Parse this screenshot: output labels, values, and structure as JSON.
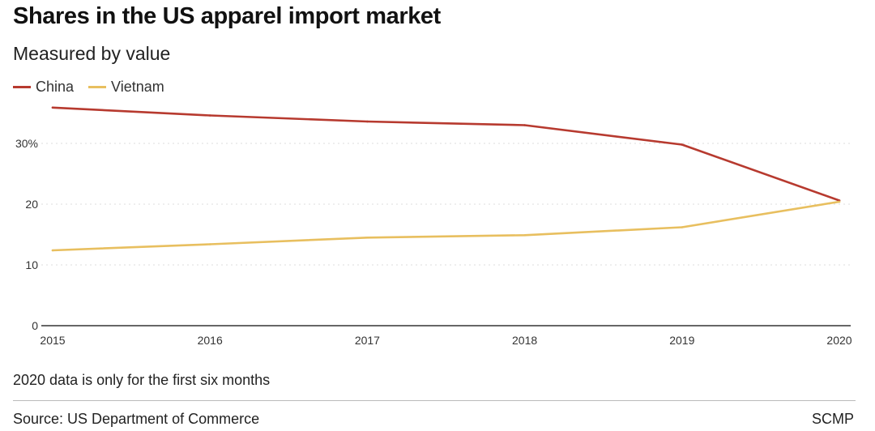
{
  "header": {
    "title": "Shares in the US apparel import market",
    "subtitle": "Measured by value"
  },
  "footer": {
    "note": "2020 data is only for the first six months",
    "source": "Source: US Department of Commerce",
    "brand": "SCMP"
  },
  "colors": {
    "china": "#b73a2f",
    "vietnam": "#e8bf5f",
    "grid": "#dddddd",
    "axis": "#333333"
  },
  "chart_data": {
    "type": "line",
    "title": "Shares in the US apparel import market",
    "subtitle": "Measured by value",
    "x": [
      2015,
      2016,
      2017,
      2018,
      2019,
      2020
    ],
    "x_tick_labels": [
      "2015",
      "2016",
      "2017",
      "2018",
      "2019",
      "2020"
    ],
    "y_ticks": [
      0,
      10,
      20,
      30
    ],
    "y_tick_labels": [
      "0",
      "10",
      "20",
      "30%"
    ],
    "ylim": [
      0,
      36
    ],
    "grid": true,
    "legend_position": "top-left",
    "xlabel": "",
    "ylabel": "",
    "series": [
      {
        "name": "China",
        "color": "#b73a2f",
        "values": [
          35.9,
          34.6,
          33.6,
          33.0,
          29.8,
          20.6
        ]
      },
      {
        "name": "Vietnam",
        "color": "#e8bf5f",
        "values": [
          12.4,
          13.4,
          14.5,
          14.9,
          16.2,
          20.4
        ]
      }
    ]
  }
}
